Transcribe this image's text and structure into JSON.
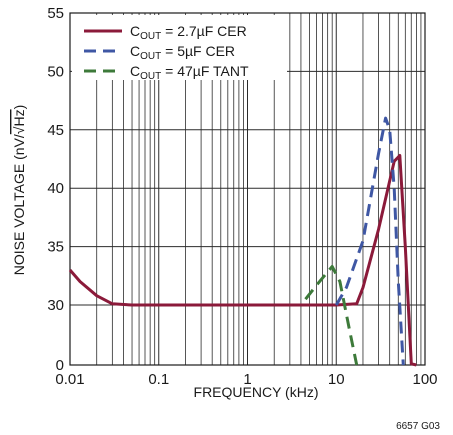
{
  "chart_data": {
    "type": "line",
    "xlabel": "FREQUENCY (kHz)",
    "ylabel_main": "NOISE VOLTAGE (nV/",
    "ylabel_sqrt": "√Hz",
    "ylabel_close": ")",
    "x_scale": "log",
    "xlim": [
      0.01,
      100
    ],
    "ylim": [
      0,
      55
    ],
    "y_axis_break": {
      "between": [
        0,
        25
      ],
      "note": "axis jumps from 0 to 25"
    },
    "x_ticks": [
      {
        "value": 0.01,
        "label": "0.01"
      },
      {
        "value": 0.1,
        "label": "0.1"
      },
      {
        "value": 1,
        "label": "1"
      },
      {
        "value": 10,
        "label": "10"
      },
      {
        "value": 100,
        "label": "100"
      }
    ],
    "y_ticks": [
      {
        "value": 0,
        "label": "0"
      },
      {
        "value": 30,
        "label": "30"
      },
      {
        "value": 35,
        "label": "35"
      },
      {
        "value": 40,
        "label": "40"
      },
      {
        "value": 45,
        "label": "45"
      },
      {
        "value": 50,
        "label": "50"
      },
      {
        "value": 55,
        "label": "55"
      }
    ],
    "grid": true,
    "legend_position": "top-left",
    "series": [
      {
        "name": "COUT = 2.7µF CER",
        "legend_main": "C",
        "legend_sub": "OUT",
        "legend_rest": " = 2.7µF CER",
        "color": "#8b1a3a",
        "dash": "solid",
        "points": [
          [
            0.01,
            33
          ],
          [
            0.013,
            32
          ],
          [
            0.02,
            30.8
          ],
          [
            0.03,
            30.1
          ],
          [
            0.05,
            30
          ],
          [
            1,
            30
          ],
          [
            10,
            30
          ],
          [
            17,
            30.1
          ],
          [
            20,
            31.5
          ],
          [
            30,
            36.5
          ],
          [
            45,
            42.3
          ],
          [
            52,
            42.8
          ],
          [
            60,
            35
          ],
          [
            70,
            18
          ],
          [
            80,
            0
          ]
        ]
      },
      {
        "name": "COUT = 5µF CER",
        "legend_main": "C",
        "legend_sub": "OUT",
        "legend_rest": " = 5µF CER",
        "color": "#3f57a4",
        "dash": "dashed",
        "points": [
          [
            10,
            30
          ],
          [
            13,
            31.5
          ],
          [
            20,
            35.5
          ],
          [
            30,
            43
          ],
          [
            36,
            46
          ],
          [
            40,
            45
          ],
          [
            45,
            40
          ],
          [
            50,
            32
          ],
          [
            57,
            0
          ]
        ]
      },
      {
        "name": "COUT = 47µF TANT",
        "legend_main": "C",
        "legend_sub": "OUT",
        "legend_rest": " = 47µF TANT",
        "color": "#3d7a3a",
        "dash": "dashed",
        "points": [
          [
            4.5,
            30.5
          ],
          [
            6,
            31.7
          ],
          [
            9,
            33.3
          ],
          [
            11,
            32
          ],
          [
            14,
            28
          ],
          [
            17,
            0
          ]
        ]
      }
    ]
  },
  "footnote": "6657 G03"
}
